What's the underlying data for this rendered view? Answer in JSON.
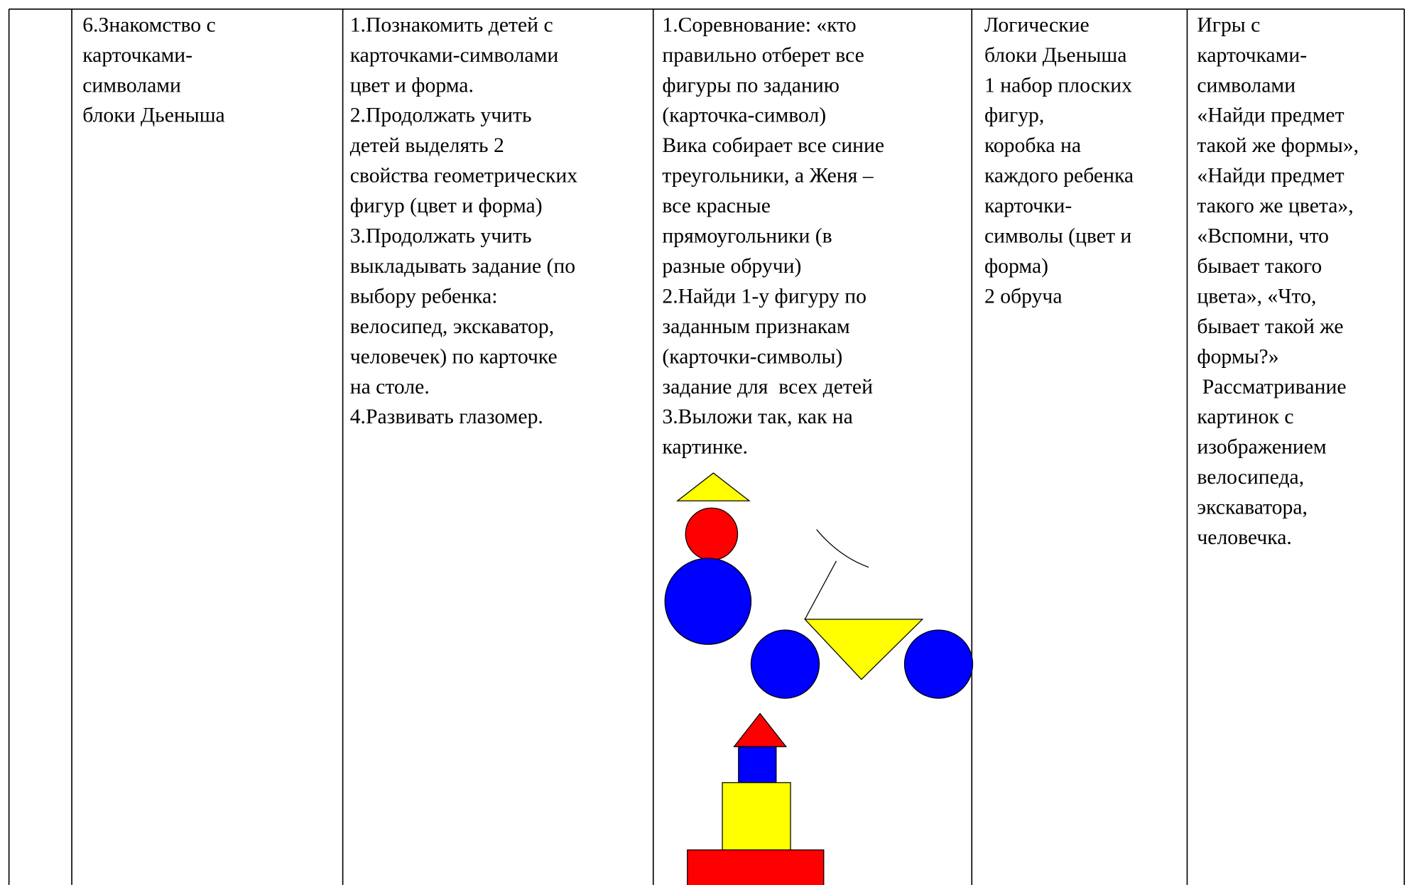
{
  "table": {
    "rows": [
      [
        [
          "6.Знакомство с",
          "карточками-",
          "символами",
          "блоки Дьеныша"
        ],
        [
          "1.Познакомить детей с",
          "карточками-символами",
          "цвет и форма.",
          "2.Продолжать учить",
          "детей выделять 2",
          "свойства геометрических",
          "фигур (цвет и форма)",
          "3.Продолжать учить",
          "выкладывать задание (по",
          "выбору ребенка:",
          "велосипед, экскаватор,",
          "человечек) по карточке",
          "на столе.",
          "4.Развивать глазомер."
        ],
        [
          "1.Соревнование: «кто",
          "правильно отберет все",
          "фигуры по заданию",
          "(карточка-символ)",
          "Вика собирает все синие",
          "треугольники, а Женя –",
          "все красные",
          "прямоугольники (в",
          "разные обручи)",
          "2.Найди 1-у фигуру по",
          "заданным признакам",
          "(карточки-символы)",
          "задание для  всех детей",
          "3.Выложи так, как на",
          "картинке."
        ],
        [
          "Логические",
          "блоки Дьеныша",
          "1 набор плоских",
          "фигур,",
          "коробка на",
          "каждого ребенка",
          "карточки-",
          "символы (цвет и",
          "форма)",
          "2 обруча"
        ],
        [
          "Игры с",
          "карточками-",
          "символами",
          "«Найди предмет",
          "такой же формы»,",
          "«Найди предмет",
          "такого же цвета»,",
          "«Вспомни, что",
          "бывает такого",
          "цвета», «Что,",
          "бывает такой же",
          "формы?»",
          " Рассматривание",
          "картинок с",
          "изображением",
          "велосипеда,",
          "экскаватора,",
          "человечка."
        ]
      ]
    ]
  }
}
